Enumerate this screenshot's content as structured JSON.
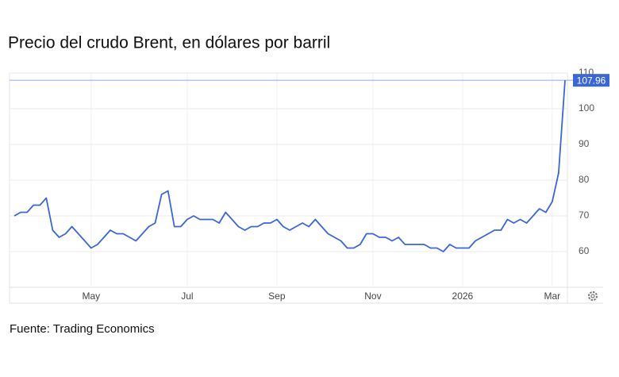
{
  "chart_data": {
    "type": "line",
    "title": "Precio del crudo Brent, en dólares por barril",
    "source": "Fuente: Trading Economics",
    "categories": [
      null,
      null,
      null,
      null,
      null,
      null,
      null,
      null,
      null,
      null,
      null,
      null,
      "May",
      null,
      null,
      null,
      null,
      null,
      null,
      null,
      null,
      null,
      null,
      null,
      null,
      null,
      null,
      "Jul",
      null,
      null,
      null,
      null,
      null,
      null,
      null,
      null,
      null,
      null,
      null,
      null,
      null,
      "Sep",
      null,
      null,
      null,
      null,
      null,
      null,
      null,
      null,
      null,
      null,
      null,
      null,
      null,
      null,
      "Nov",
      null,
      null,
      null,
      null,
      null,
      null,
      null,
      null,
      null,
      null,
      null,
      null,
      null,
      "2026",
      null,
      null,
      null,
      null,
      null,
      null,
      null,
      null,
      null,
      null,
      null,
      null,
      null,
      "Mar",
      null,
      null
    ],
    "series": [
      {
        "name": "Brent",
        "color": "#3a66d8",
        "values": [
          70,
          71,
          71,
          73,
          73,
          75,
          66,
          64,
          65,
          67,
          65,
          63,
          61,
          62,
          64,
          66,
          65,
          65,
          64,
          63,
          65,
          67,
          68,
          76,
          77,
          67,
          67,
          69,
          70,
          69,
          69,
          69,
          68,
          71,
          69,
          67,
          66,
          67,
          67,
          68,
          68,
          69,
          67,
          66,
          67,
          68,
          67,
          69,
          67,
          65,
          64,
          63,
          61,
          61,
          62,
          65,
          65,
          64,
          64,
          63,
          64,
          62,
          62,
          62,
          62,
          61,
          61,
          60,
          62,
          61,
          61,
          61,
          63,
          64,
          65,
          66,
          66,
          69,
          68,
          69,
          68,
          70,
          72,
          71,
          74,
          82,
          107.96
        ]
      }
    ],
    "ylim": [
      50,
      110
    ],
    "yticks": [
      60,
      70,
      80,
      90,
      100,
      110
    ],
    "grid": true
  }
}
